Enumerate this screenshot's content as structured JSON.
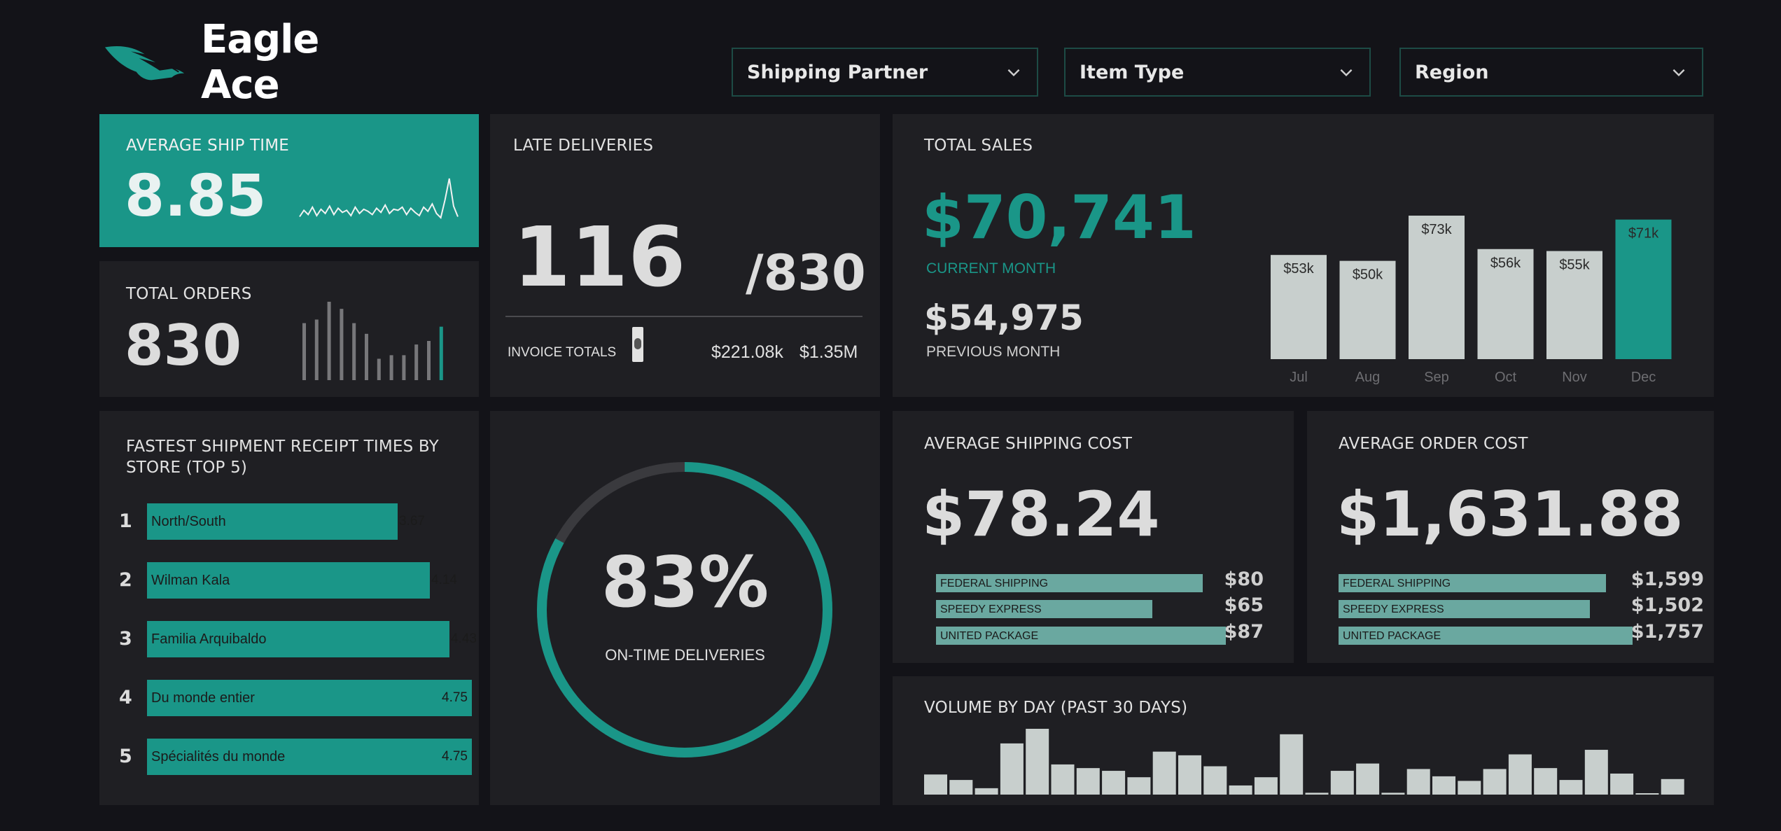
{
  "brand": {
    "name": "Eagle Ace"
  },
  "filters": [
    {
      "label": "Shipping Partner"
    },
    {
      "label": "Item Type"
    },
    {
      "label": "Region"
    }
  ],
  "avg_ship_time": {
    "title": "AVERAGE SHIP TIME",
    "value": "8.85"
  },
  "total_orders": {
    "title": "TOTAL ORDERS",
    "value": "830"
  },
  "late_deliveries": {
    "title": "LATE DELIVERIES",
    "value": "116",
    "total": "/830",
    "invoice_label": "INVOICE TOTALS",
    "invoice_late": "$221.08k",
    "invoice_total": "$1.35M"
  },
  "total_sales": {
    "title": "TOTAL SALES",
    "current_value": "$70,741",
    "current_label": "CURRENT MONTH",
    "previous_value": "$54,975",
    "previous_label": "PREVIOUS MONTH"
  },
  "fastest": {
    "title_line1": "FASTEST SHIPMENT RECEIPT TIMES BY",
    "title_line2": "STORE (TOP 5)",
    "items": [
      {
        "rank": "1",
        "store": "North/South",
        "value": "3.67"
      },
      {
        "rank": "2",
        "store": "Wilman Kala",
        "value": "4.14"
      },
      {
        "rank": "3",
        "store": "Familia Arquibaldo",
        "value": "4.43"
      },
      {
        "rank": "4",
        "store": "Du monde entier",
        "value": "4.75"
      },
      {
        "rank": "5",
        "store": "Spécialités du monde",
        "value": "4.75"
      }
    ]
  },
  "on_time": {
    "value": "83%",
    "label": "ON-TIME DELIVERIES",
    "percent": 83
  },
  "avg_shipping_cost": {
    "title": "AVERAGE SHIPPING COST",
    "value": "$78.24",
    "rows": [
      {
        "name": "FEDERAL SHIPPING",
        "value": "$80",
        "amount": 80
      },
      {
        "name": "SPEEDY EXPRESS",
        "value": "$65",
        "amount": 65
      },
      {
        "name": "UNITED PACKAGE",
        "value": "$87",
        "amount": 87
      }
    ]
  },
  "avg_order_cost": {
    "title": "AVERAGE ORDER COST",
    "value": "$1,631.88",
    "rows": [
      {
        "name": "FEDERAL SHIPPING",
        "value": "$1,599",
        "amount": 1599
      },
      {
        "name": "SPEEDY EXPRESS",
        "value": "$1,502",
        "amount": 1502
      },
      {
        "name": "UNITED PACKAGE",
        "value": "$1,757",
        "amount": 1757
      }
    ]
  },
  "volume": {
    "title": "VOLUME BY DAY (PAST 30 DAYS)"
  },
  "colors": {
    "accent": "#1a9688",
    "card": "#1f1f23",
    "background": "#131318",
    "bar_light": "#c8cfcd"
  },
  "chart_data": [
    {
      "type": "bar",
      "chart": "total-sales-by-month",
      "categories": [
        "Jul",
        "Aug",
        "Sep",
        "Oct",
        "Nov",
        "Dec"
      ],
      "values": [
        53,
        50,
        73,
        56,
        55,
        71
      ],
      "data_labels": [
        "$53k",
        "$50k",
        "$73k",
        "$56k",
        "$55k",
        "$71k"
      ],
      "highlight": "Dec",
      "ylim": [
        0,
        80
      ]
    },
    {
      "type": "line",
      "chart": "average-ship-time-sparkline",
      "values": [
        3.0,
        3.6,
        3.2,
        3.9,
        3.1,
        3.7,
        3.3,
        4.0,
        3.2,
        3.8,
        3.4,
        3.6,
        3.1,
        3.9,
        3.3,
        3.7,
        3.5,
        3.2,
        3.8,
        3.4,
        4.1,
        3.3,
        3.7,
        3.6,
        3.9,
        3.2,
        3.8,
        3.4,
        3.1,
        3.9,
        3.5,
        4.2,
        3.3,
        2.9,
        4.6,
        6.6,
        4.0,
        3.0
      ]
    },
    {
      "type": "bar",
      "chart": "total-orders-sparkbars",
      "values": [
        8,
        8.5,
        11,
        10,
        8,
        6.5,
        3,
        3.5,
        3.5,
        5,
        5.5,
        7.5
      ],
      "highlight_last": true
    },
    {
      "type": "bar",
      "chart": "volume-by-day",
      "values": [
        22,
        16,
        7,
        56,
        72,
        33,
        29,
        26,
        19,
        47,
        43,
        31,
        10,
        19,
        66,
        2,
        26,
        34,
        2,
        28,
        20,
        15,
        28,
        44,
        29,
        16,
        49,
        23,
        1,
        17
      ]
    }
  ]
}
